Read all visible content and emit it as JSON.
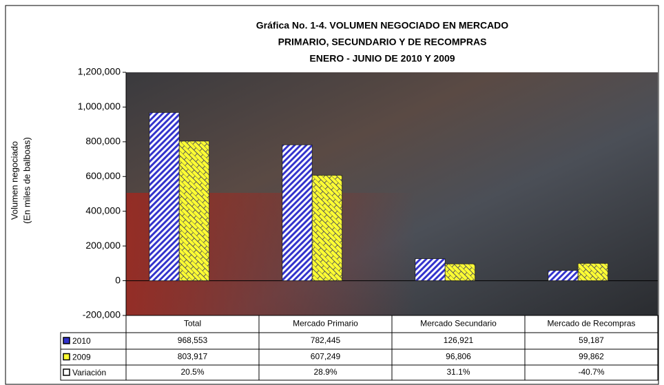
{
  "chart_data": {
    "type": "bar",
    "title": [
      "Gráfica No. 1-4.  VOLUMEN NEGOCIADO EN  MERCADO",
      "PRIMARIO, SECUNDARIO Y DE RECOMPRAS",
      "ENERO - JUNIO DE 2010 Y 2009"
    ],
    "ylabel": [
      "Volumen negociado",
      "(En miles de balboas)"
    ],
    "categories": [
      "Total",
      "Mercado Primario",
      "Mercado Secundario",
      "Mercado de Recompras"
    ],
    "series": [
      {
        "name": "2010",
        "color": "#3333cc",
        "values": [
          968553,
          782445,
          126921,
          59187
        ],
        "value_labels": [
          "968,553",
          "782,445",
          "126,921",
          "59,187"
        ]
      },
      {
        "name": "2009",
        "color": "#ffff33",
        "values": [
          803917,
          607249,
          96806,
          99862
        ],
        "value_labels": [
          "803,917",
          "607,249",
          "96,806",
          "99,862"
        ]
      },
      {
        "name": "Variación",
        "color": "#ffffff",
        "values": [
          20.5,
          28.9,
          31.1,
          -40.7
        ],
        "value_labels": [
          "20.5%",
          "28.9%",
          "31.1%",
          "-40.7%"
        ]
      }
    ],
    "ylim": [
      -200000,
      1200000
    ],
    "yticks": [
      {
        "value": -200000,
        "label": "-200,000"
      },
      0,
      {
        "value": 200000,
        "label": "200,000"
      },
      {
        "value": 400000,
        "label": "400,000"
      },
      {
        "value": 600000,
        "label": "600,000"
      },
      {
        "value": 800000,
        "label": "800,000"
      },
      {
        "value": 1000000,
        "label": "1,000,000"
      },
      {
        "value": 1200000,
        "label": "1,200,000"
      }
    ]
  }
}
